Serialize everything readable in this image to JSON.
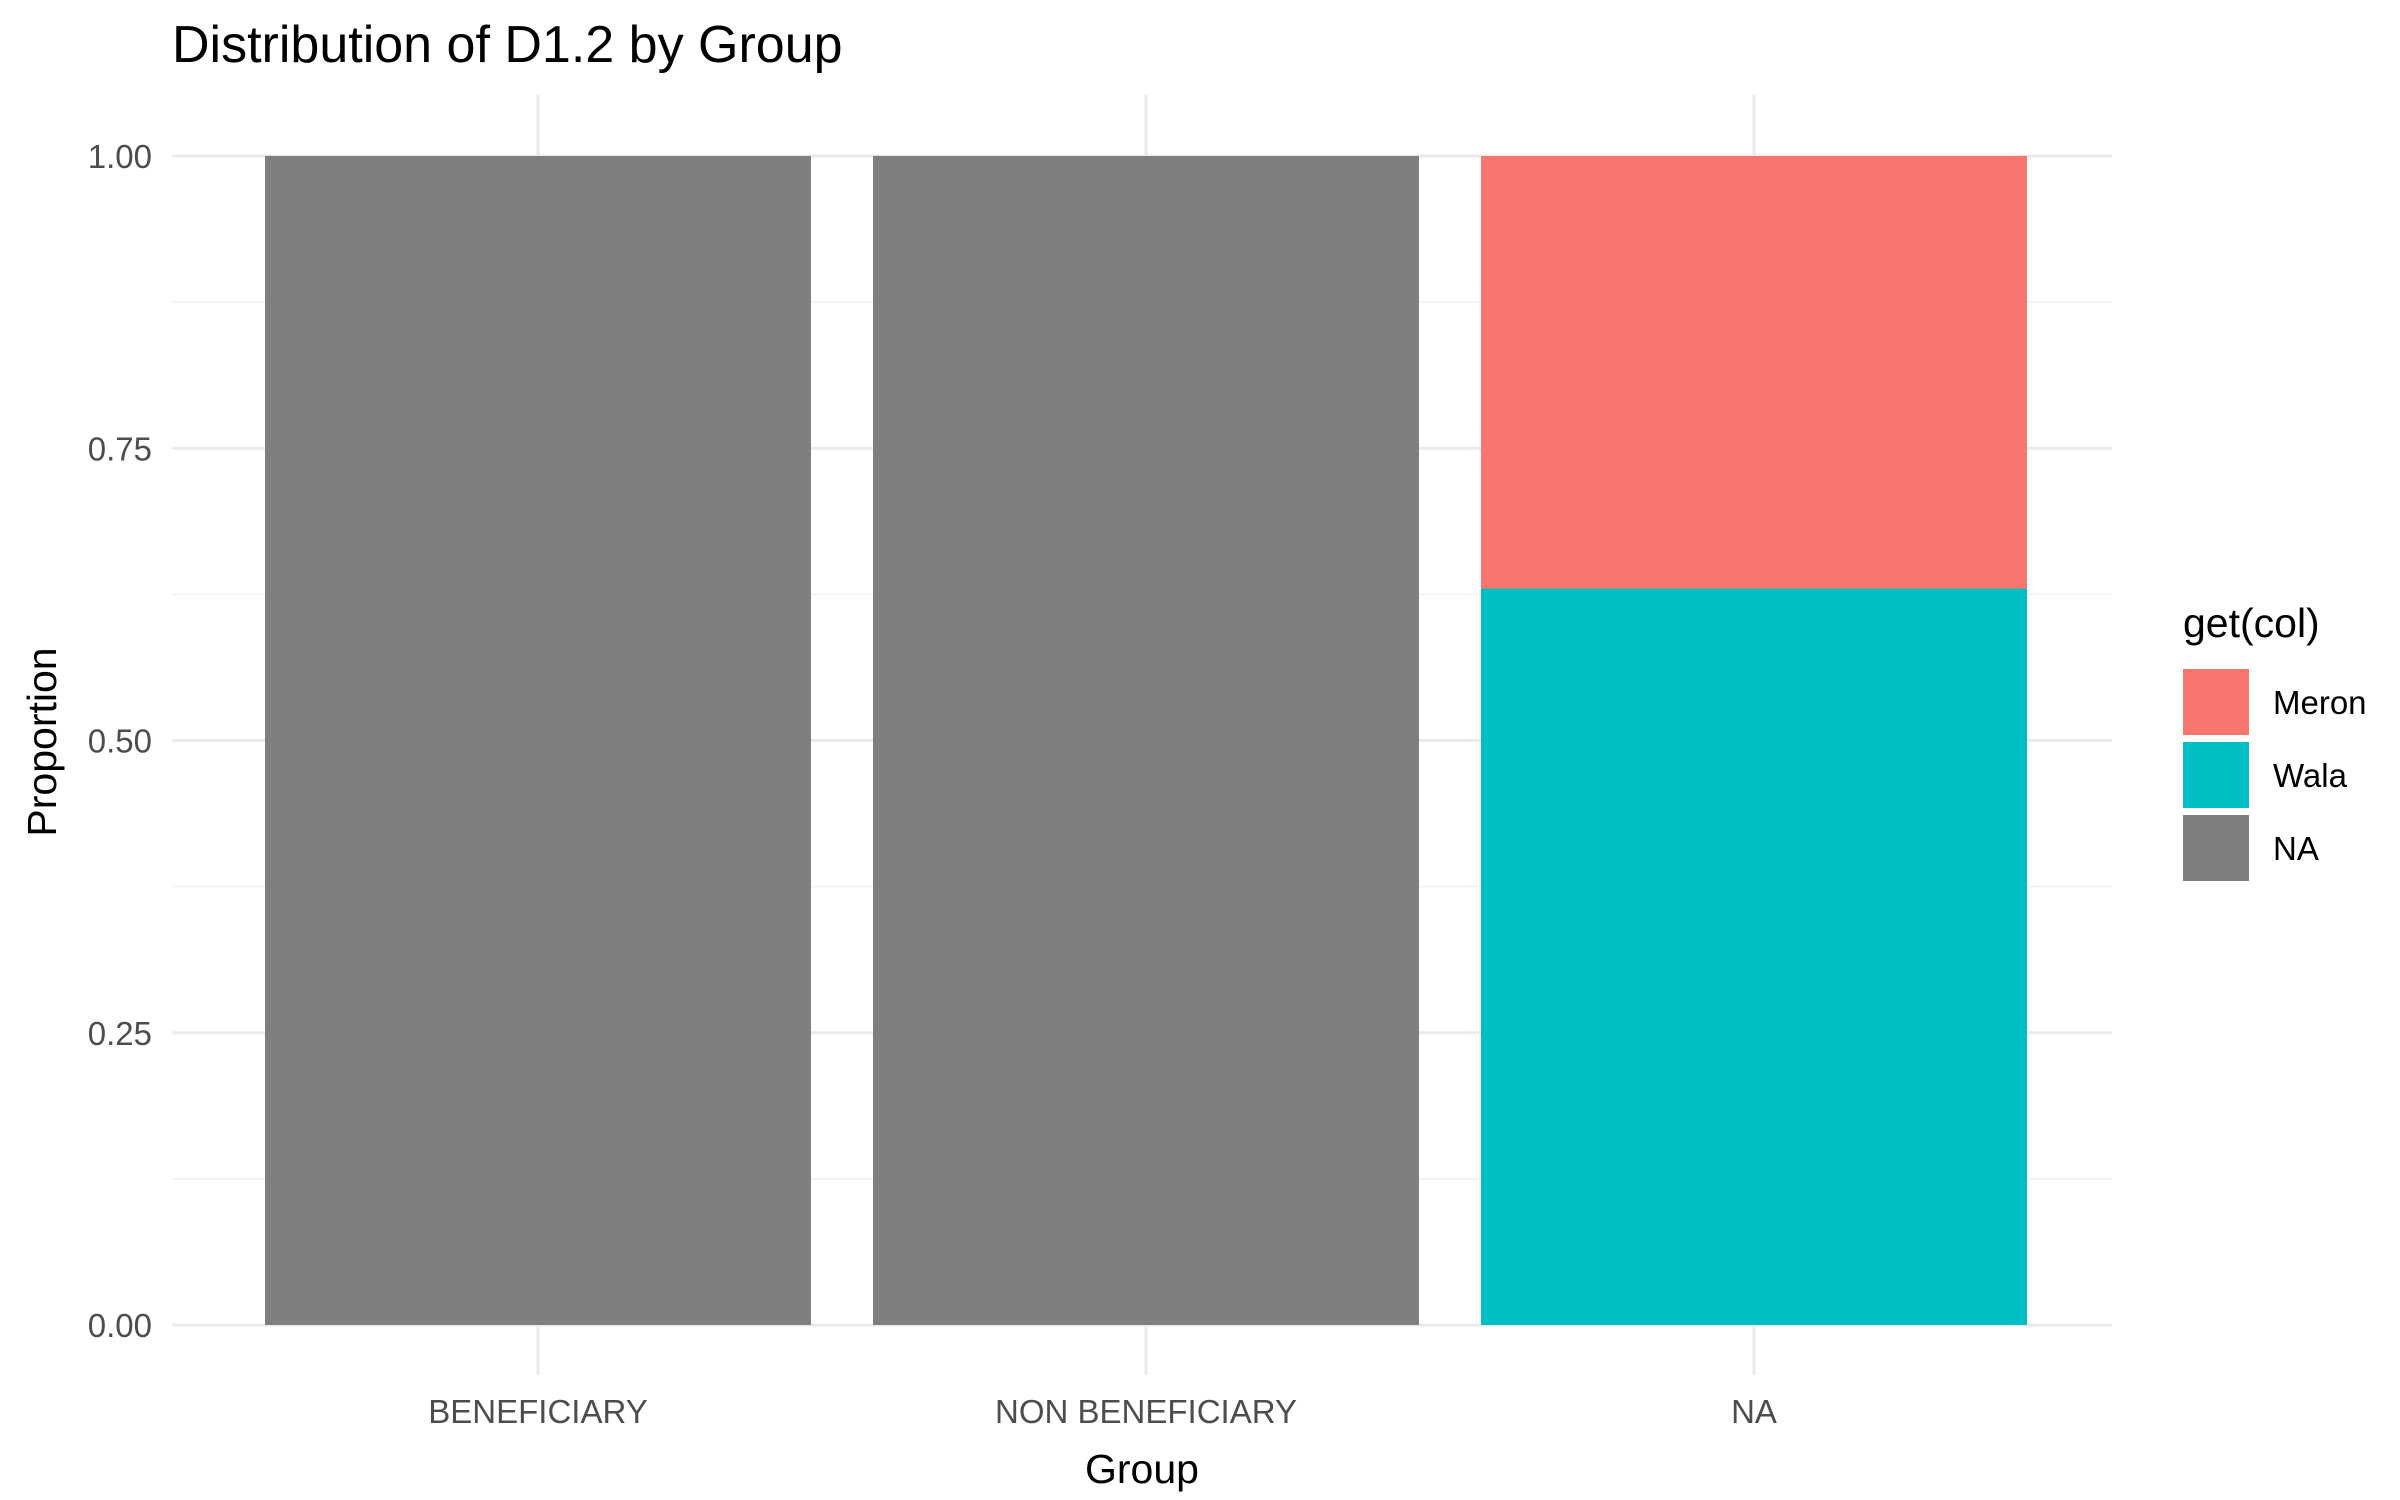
{
  "chart_data": {
    "type": "bar",
    "stacked": true,
    "title": "Distribution of D1.2 by Group",
    "xlabel": "Group",
    "ylabel": "Proportion",
    "categories": [
      "BENEFICIARY",
      "NON BENEFICIARY",
      "NA"
    ],
    "ylim": [
      0,
      1
    ],
    "yticks": [
      "0.00",
      "0.25",
      "0.50",
      "0.75",
      "1.00"
    ],
    "ytick_values": [
      0,
      0.25,
      0.5,
      0.75,
      1
    ],
    "grid": true,
    "legend": {
      "title": "get(col)",
      "position": "right"
    },
    "series": [
      {
        "name": "Meron",
        "color": "#F8766D",
        "values": [
          0,
          0,
          0.37
        ]
      },
      {
        "name": "Wala",
        "color": "#00BFC4",
        "values": [
          0,
          0,
          0.63
        ]
      },
      {
        "name": "NA",
        "color": "#7F7F7F",
        "values": [
          1,
          1,
          0
        ]
      }
    ],
    "stack_order_bottom_to_top": [
      "NA",
      "Wala",
      "Meron"
    ]
  }
}
